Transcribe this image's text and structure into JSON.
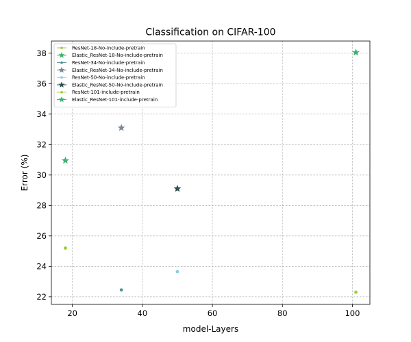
{
  "chart_data": {
    "type": "scatter",
    "title": "Classification on CIFAR-100",
    "xlabel": "model-Layers",
    "ylabel": "Error (%)",
    "xlim": [
      14,
      105
    ],
    "ylim": [
      21.5,
      38.8
    ],
    "xticks": [
      20,
      40,
      60,
      80,
      100
    ],
    "yticks": [
      22,
      24,
      26,
      28,
      30,
      32,
      34,
      36,
      38
    ],
    "grid": true,
    "legend_position": "upper-left",
    "series": [
      {
        "name": "ResNet-18-No-include-pretrain",
        "marker": "circle",
        "color": "#9acd32",
        "points": [
          {
            "x": 18,
            "y": 25.2
          }
        ]
      },
      {
        "name": "Elastic_ResNet-18-No-include-pretrain",
        "marker": "star",
        "color": "#3cb371",
        "points": [
          {
            "x": 18,
            "y": 30.95
          }
        ]
      },
      {
        "name": "ResNet-34-No-include-pretrain",
        "marker": "circle",
        "color": "#4f9191",
        "points": [
          {
            "x": 34,
            "y": 22.45
          }
        ]
      },
      {
        "name": "Elastic_ResNet-34-No-include-pretrain",
        "marker": "star",
        "color": "#778899",
        "points": [
          {
            "x": 34,
            "y": 33.1
          }
        ]
      },
      {
        "name": "ResNet-50-No-include-pretrain",
        "marker": "circle",
        "color": "#87cedf",
        "points": [
          {
            "x": 50,
            "y": 23.65
          }
        ]
      },
      {
        "name": "Elastic_ResNet-50-No-include-pretrain",
        "marker": "star",
        "color": "#2f4f4f",
        "points": [
          {
            "x": 50,
            "y": 29.1
          }
        ]
      },
      {
        "name": "ResNet-101-include-pretrain",
        "marker": "circle",
        "color": "#9acd32",
        "points": [
          {
            "x": 101,
            "y": 22.3
          }
        ]
      },
      {
        "name": "Elastic_ResNet-101-include-pretrain",
        "marker": "star",
        "color": "#3cb371",
        "points": [
          {
            "x": 101,
            "y": 38.05
          }
        ]
      }
    ]
  }
}
